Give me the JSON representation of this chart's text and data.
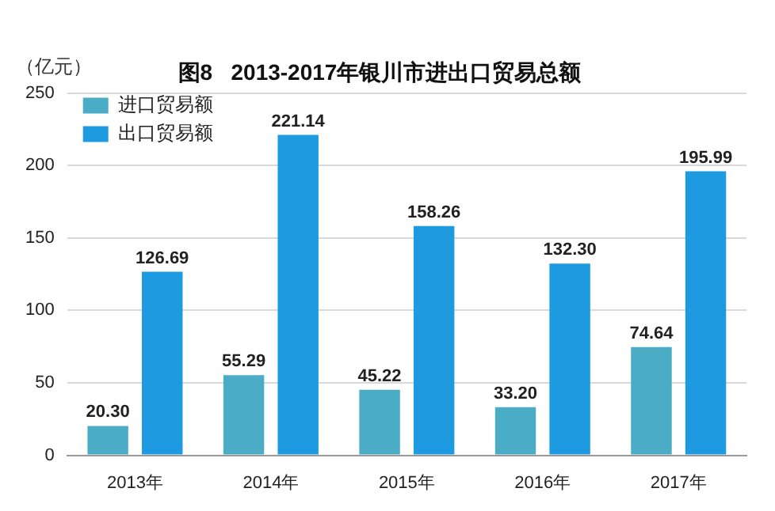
{
  "chart_data": {
    "type": "bar",
    "title": "图8   2013-2017年银川市进出口贸易总额",
    "ylabel": "（亿元）",
    "categories": [
      "2013年",
      "2014年",
      "2015年",
      "2016年",
      "2017年"
    ],
    "series": [
      {
        "name": "进口贸易额",
        "color": "#4bacc6",
        "values": [
          20.3,
          55.29,
          45.22,
          33.2,
          74.64
        ],
        "value_labels": [
          "20.30",
          "55.29",
          "45.22",
          "33.20",
          "74.64"
        ]
      },
      {
        "name": "出口贸易额",
        "color": "#1e9be0",
        "values": [
          126.69,
          221.14,
          158.26,
          132.3,
          195.99
        ],
        "value_labels": [
          "126.69",
          "221.14",
          "158.26",
          "132.30",
          "195.99"
        ]
      }
    ],
    "ylim": [
      0,
      250
    ],
    "yticks": [
      0,
      50,
      100,
      150,
      200,
      250
    ],
    "grid": "y",
    "legend": "top left"
  }
}
